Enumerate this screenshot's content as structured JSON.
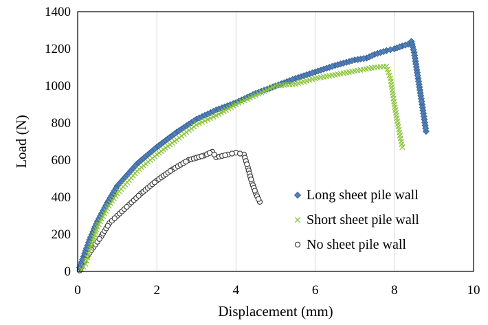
{
  "chart_data": {
    "type": "scatter",
    "title": "",
    "xlabel": "Displacement  (mm)",
    "ylabel": "Load (N)",
    "xlim": [
      0,
      10
    ],
    "ylim": [
      0,
      1400
    ],
    "x_ticks": [
      0,
      2,
      4,
      6,
      8,
      10
    ],
    "y_ticks": [
      0,
      200,
      400,
      600,
      800,
      1000,
      1200,
      1400
    ],
    "grid": "vertical",
    "legend_position": "bottom-right",
    "series": [
      {
        "name": "Long sheet pile wall",
        "marker": "diamond",
        "color": "#4f81bd",
        "stroke": "#385d8a",
        "x": [
          0.05,
          0.15,
          0.3,
          0.5,
          0.75,
          1.0,
          1.5,
          2.0,
          2.5,
          3.0,
          3.5,
          4.0,
          4.5,
          5.0,
          5.5,
          6.0,
          6.5,
          7.0,
          7.3,
          7.5,
          7.8,
          8.0,
          8.2,
          8.35,
          8.43,
          8.5,
          8.6,
          8.7,
          8.8
        ],
        "y": [
          20,
          80,
          170,
          270,
          370,
          460,
          580,
          670,
          750,
          820,
          870,
          910,
          960,
          1000,
          1040,
          1075,
          1110,
          1140,
          1150,
          1170,
          1190,
          1200,
          1215,
          1225,
          1240,
          1180,
          1040,
          900,
          755
        ]
      },
      {
        "name": "Short sheet pile wall",
        "marker": "x",
        "color": "#8dc63f",
        "x": [
          0.1,
          0.2,
          0.3,
          0.5,
          0.75,
          1.0,
          1.5,
          2.0,
          2.5,
          3.0,
          3.5,
          4.0,
          4.5,
          5.0,
          5.5,
          6.0,
          6.5,
          7.0,
          7.5,
          7.8,
          7.9,
          8.0,
          8.1,
          8.2
        ],
        "y": [
          10,
          40,
          110,
          240,
          340,
          420,
          540,
          630,
          710,
          790,
          840,
          900,
          950,
          1000,
          1010,
          1040,
          1060,
          1080,
          1100,
          1105,
          1040,
          900,
          780,
          670
        ]
      },
      {
        "name": "No sheet pile wall",
        "marker": "circle",
        "color": "#404040",
        "x": [
          0.05,
          0.2,
          0.4,
          0.6,
          0.8,
          1.0,
          1.3,
          1.6,
          2.0,
          2.4,
          2.8,
          3.2,
          3.4,
          3.5,
          3.8,
          4.0,
          4.2,
          4.3,
          4.4,
          4.5,
          4.6
        ],
        "y": [
          5,
          70,
          130,
          190,
          260,
          300,
          360,
          420,
          490,
          550,
          600,
          625,
          645,
          615,
          630,
          640,
          630,
          560,
          480,
          420,
          375
        ]
      }
    ]
  }
}
